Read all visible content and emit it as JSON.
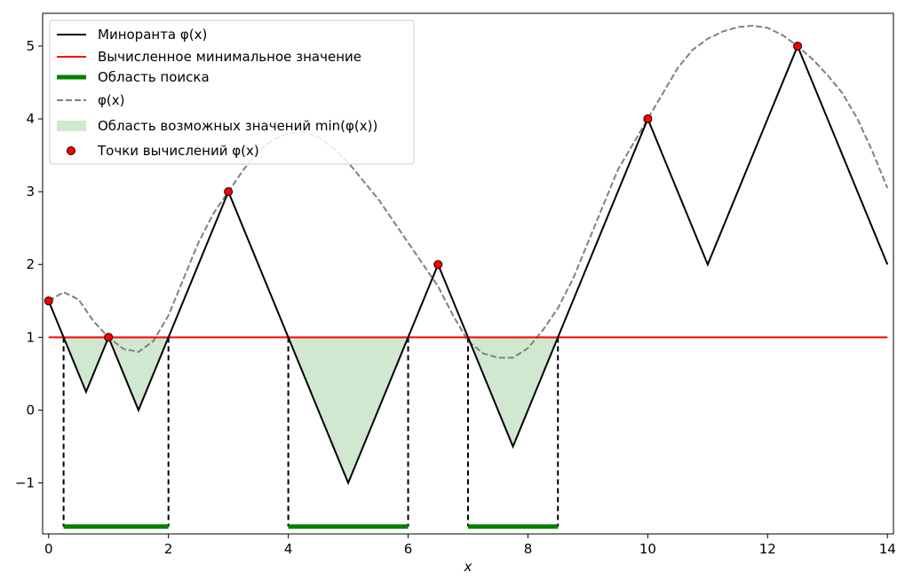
{
  "chart_data": {
    "type": "line",
    "xlabel": "x",
    "ylabel": "",
    "xlim": [
      -0.1,
      14.1
    ],
    "ylim": [
      -1.7,
      5.45
    ],
    "x_ticks": [
      0,
      2,
      4,
      6,
      8,
      10,
      12,
      14
    ],
    "x_tick_labels": [
      "0",
      "2",
      "4",
      "6",
      "8",
      "10",
      "12",
      "14"
    ],
    "y_ticks": [
      -1,
      0,
      1,
      2,
      3,
      4,
      5
    ],
    "y_tick_labels": [
      "−1",
      "0",
      "1",
      "2",
      "3",
      "4",
      "5"
    ],
    "legend_position": "top-left",
    "grid": false,
    "series": [
      {
        "name": "Миноранта φ(x)",
        "kind": "line",
        "color": "#000000",
        "x": [
          0,
          0.625,
          1,
          1.5,
          3,
          5,
          6.5,
          7.75,
          10,
          11,
          12.5,
          14
        ],
        "y": [
          1.5,
          0.25,
          1,
          0,
          3,
          -1,
          2,
          -0.5,
          4,
          2,
          5,
          2
        ]
      },
      {
        "name": "Вычисленное минимальное значение",
        "kind": "hline",
        "color": "#ff0000",
        "y": 1,
        "x_range": [
          0,
          14
        ]
      },
      {
        "name": "Область поиска",
        "kind": "segments",
        "color": "#008000",
        "y": -1.6,
        "intervals": [
          [
            0.25,
            2
          ],
          [
            4,
            6
          ],
          [
            7,
            8.5
          ]
        ]
      },
      {
        "name": "φ(x)",
        "kind": "dashed-line",
        "color": "#808080",
        "x": [
          0,
          0.25,
          0.5,
          0.75,
          1,
          1.25,
          1.5,
          1.75,
          2,
          2.25,
          2.5,
          2.75,
          3,
          3.25,
          3.5,
          3.75,
          4,
          4.25,
          4.5,
          4.75,
          5,
          5.25,
          5.5,
          5.75,
          6,
          6.25,
          6.5,
          6.75,
          7,
          7.25,
          7.5,
          7.75,
          8,
          8.25,
          8.5,
          8.75,
          9,
          9.25,
          9.5,
          9.75,
          10,
          10.25,
          10.5,
          10.75,
          11,
          11.25,
          11.5,
          11.75,
          12,
          12.25,
          12.5,
          12.75,
          13,
          13.25,
          13.5,
          13.75,
          14
        ],
        "y": [
          1.5,
          1.62,
          1.52,
          1.22,
          1.0,
          0.84,
          0.8,
          0.95,
          1.3,
          1.8,
          2.3,
          2.7,
          3.0,
          3.3,
          3.55,
          3.72,
          3.8,
          3.82,
          3.75,
          3.6,
          3.4,
          3.15,
          2.9,
          2.6,
          2.3,
          2.0,
          1.7,
          1.3,
          0.95,
          0.78,
          0.72,
          0.72,
          0.85,
          1.1,
          1.4,
          1.8,
          2.3,
          2.8,
          3.3,
          3.65,
          4.0,
          4.35,
          4.7,
          4.95,
          5.1,
          5.2,
          5.26,
          5.28,
          5.25,
          5.15,
          5.0,
          4.82,
          4.6,
          4.35,
          4.0,
          3.55,
          3.05
        ]
      },
      {
        "name": "Область возможных значений min(φ(x))",
        "kind": "fill",
        "color": "#b5dbb5",
        "regions": [
          {
            "x": [
              0.25,
              0.625,
              1
            ],
            "y": [
              1,
              0.25,
              1
            ]
          },
          {
            "x": [
              1,
              1.5,
              2
            ],
            "y": [
              1,
              0,
              1
            ]
          },
          {
            "x": [
              4,
              5,
              6
            ],
            "y": [
              1,
              -1,
              1
            ]
          },
          {
            "x": [
              7,
              7.75,
              8.5
            ],
            "y": [
              1,
              -0.5,
              1
            ]
          }
        ]
      },
      {
        "name": "Точки вычислений φ(x)",
        "kind": "scatter",
        "color": "#ff0000",
        "x": [
          0,
          1,
          3,
          6.5,
          10,
          12.5
        ],
        "y": [
          1.5,
          1,
          3,
          2,
          4,
          5
        ]
      }
    ],
    "vertical_dashed_x": [
      0.25,
      2,
      4,
      6,
      7,
      8.5
    ]
  }
}
